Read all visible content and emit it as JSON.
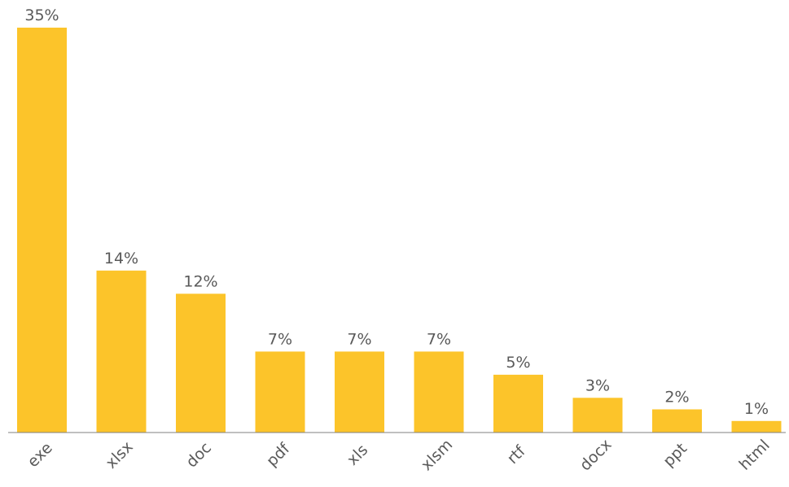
{
  "chart_data": {
    "type": "bar",
    "categories": [
      "exe",
      "xlsx",
      "doc",
      "pdf",
      "xls",
      "xlsm",
      "rtf",
      "docx",
      "ppt",
      "html"
    ],
    "values": [
      35,
      14,
      12,
      7,
      7,
      7,
      5,
      3,
      2,
      1
    ],
    "value_labels": [
      "35%",
      "14%",
      "12%",
      "7%",
      "7%",
      "7%",
      "5%",
      "3%",
      "2%",
      "1%"
    ],
    "unit": "%",
    "title": "",
    "xlabel": "",
    "ylabel": "",
    "ylim": [
      0,
      35
    ],
    "grid": false,
    "legend": "none",
    "bar_color": "#FCC42A",
    "axis_color": "#808080"
  }
}
